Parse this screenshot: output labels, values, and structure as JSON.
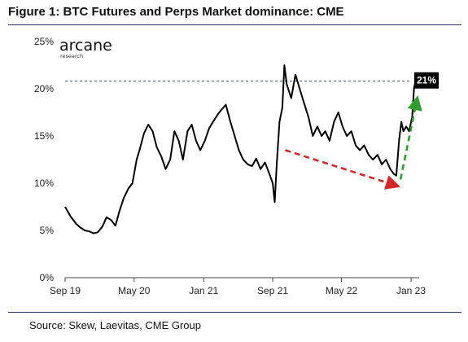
{
  "header": {
    "title": "Figure 1: BTC Futures and Perps Market dominance: CME"
  },
  "footer": {
    "source": "Source: Skew, Laevitas, CME Group"
  },
  "brand": {
    "name": "arcane",
    "sub": "research"
  },
  "chart_data": {
    "type": "line",
    "title": "Figure 1: BTC Futures and Perps Market dominance: CME",
    "xlabel": "",
    "ylabel": "",
    "ylim": [
      0,
      25
    ],
    "y_ticks": [
      {
        "value": 0,
        "label": "0%"
      },
      {
        "value": 5,
        "label": "5%"
      },
      {
        "value": 10,
        "label": "10%"
      },
      {
        "value": 15,
        "label": "15%"
      },
      {
        "value": 20,
        "label": "20%"
      },
      {
        "value": 25,
        "label": "25%"
      }
    ],
    "x_ticks": [
      {
        "date": "2019-09",
        "label": "Sep 19"
      },
      {
        "date": "2020-05",
        "label": "May 20"
      },
      {
        "date": "2021-01",
        "label": "Jan 21"
      },
      {
        "date": "2021-09",
        "label": "Sep 21"
      },
      {
        "date": "2022-05",
        "label": "May 22"
      },
      {
        "date": "2023-01",
        "label": "Jan 23"
      }
    ],
    "series": [
      {
        "color": "#000000",
        "points": [
          [
            "2019-09-01",
            7.5
          ],
          [
            "2019-09-20",
            6.5
          ],
          [
            "2019-10-10",
            5.7
          ],
          [
            "2019-10-25",
            5.3
          ],
          [
            "2019-11-10",
            5.0
          ],
          [
            "2019-11-25",
            4.9
          ],
          [
            "2019-12-10",
            4.7
          ],
          [
            "2019-12-25",
            4.8
          ],
          [
            "2020-01-10",
            5.4
          ],
          [
            "2020-01-25",
            6.4
          ],
          [
            "2020-02-10",
            6.1
          ],
          [
            "2020-02-25",
            5.5
          ],
          [
            "2020-03-10",
            7.0
          ],
          [
            "2020-03-25",
            8.4
          ],
          [
            "2020-04-10",
            9.4
          ],
          [
            "2020-04-25",
            10.0
          ],
          [
            "2020-05-10",
            12.5
          ],
          [
            "2020-05-20",
            13.5
          ],
          [
            "2020-06-05",
            15.3
          ],
          [
            "2020-06-20",
            16.2
          ],
          [
            "2020-07-05",
            15.5
          ],
          [
            "2020-07-20",
            13.8
          ],
          [
            "2020-08-05",
            12.8
          ],
          [
            "2020-08-20",
            11.5
          ],
          [
            "2020-09-05",
            12.5
          ],
          [
            "2020-09-20",
            15.5
          ],
          [
            "2020-10-05",
            14.5
          ],
          [
            "2020-10-20",
            12.5
          ],
          [
            "2020-11-05",
            15.5
          ],
          [
            "2020-11-20",
            16.2
          ],
          [
            "2020-12-05",
            14.5
          ],
          [
            "2020-12-20",
            13.5
          ],
          [
            "2021-01-05",
            14.5
          ],
          [
            "2021-01-20",
            15.8
          ],
          [
            "2021-02-05",
            16.6
          ],
          [
            "2021-02-20",
            17.3
          ],
          [
            "2021-03-05",
            17.8
          ],
          [
            "2021-03-20",
            18.3
          ],
          [
            "2021-04-05",
            16.5
          ],
          [
            "2021-04-20",
            15.0
          ],
          [
            "2021-05-05",
            13.5
          ],
          [
            "2021-05-20",
            12.5
          ],
          [
            "2021-06-05",
            12.0
          ],
          [
            "2021-06-20",
            11.8
          ],
          [
            "2021-07-05",
            12.6
          ],
          [
            "2021-07-20",
            11.5
          ],
          [
            "2021-08-05",
            12.2
          ],
          [
            "2021-08-20",
            11.0
          ],
          [
            "2021-09-01",
            10.0
          ],
          [
            "2021-09-08",
            8.0
          ],
          [
            "2021-09-15",
            12.0
          ],
          [
            "2021-09-25",
            16.5
          ],
          [
            "2021-10-05",
            18.0
          ],
          [
            "2021-10-12",
            22.5
          ],
          [
            "2021-10-20",
            20.5
          ],
          [
            "2021-11-05",
            19.0
          ],
          [
            "2021-11-20",
            21.5
          ],
          [
            "2021-12-05",
            20.0
          ],
          [
            "2021-12-20",
            18.5
          ],
          [
            "2022-01-05",
            17.0
          ],
          [
            "2022-01-20",
            15.0
          ],
          [
            "2022-02-05",
            16.0
          ],
          [
            "2022-02-20",
            15.0
          ],
          [
            "2022-03-05",
            15.5
          ],
          [
            "2022-03-20",
            14.5
          ],
          [
            "2022-04-05",
            16.5
          ],
          [
            "2022-04-20",
            17.5
          ],
          [
            "2022-05-05",
            16.0
          ],
          [
            "2022-05-20",
            15.0
          ],
          [
            "2022-06-05",
            15.5
          ],
          [
            "2022-06-20",
            14.0
          ],
          [
            "2022-07-05",
            13.5
          ],
          [
            "2022-07-20",
            14.0
          ],
          [
            "2022-08-05",
            13.0
          ],
          [
            "2022-08-20",
            12.5
          ],
          [
            "2022-09-05",
            13.0
          ],
          [
            "2022-09-20",
            12.0
          ],
          [
            "2022-10-05",
            12.5
          ],
          [
            "2022-10-20",
            11.5
          ],
          [
            "2022-11-01",
            11.0
          ],
          [
            "2022-11-10",
            10.8
          ],
          [
            "2022-11-20",
            14.5
          ],
          [
            "2022-11-28",
            16.5
          ],
          [
            "2022-12-05",
            15.5
          ],
          [
            "2022-12-15",
            16.0
          ],
          [
            "2022-12-25",
            15.5
          ],
          [
            "2023-01-05",
            17.0
          ],
          [
            "2023-01-12",
            20.2
          ],
          [
            "2023-01-18",
            20.8
          ]
        ]
      }
    ],
    "reference_line": {
      "value": 20.8,
      "style": "dashed",
      "color": "#2b3a55"
    },
    "callout": {
      "label": "21%",
      "background": "#000000"
    },
    "arrows": [
      {
        "from": [
          "2021-10-15",
          13.5
        ],
        "to": [
          "2022-11-15",
          9.7
        ],
        "color": "#d62728",
        "style": "dashed"
      },
      {
        "from": [
          "2022-11-25",
          10.4
        ],
        "to": [
          "2023-01-23",
          19.0
        ],
        "color": "#2ca02c",
        "style": "dashed"
      }
    ],
    "grid": false,
    "legend": "none"
  }
}
